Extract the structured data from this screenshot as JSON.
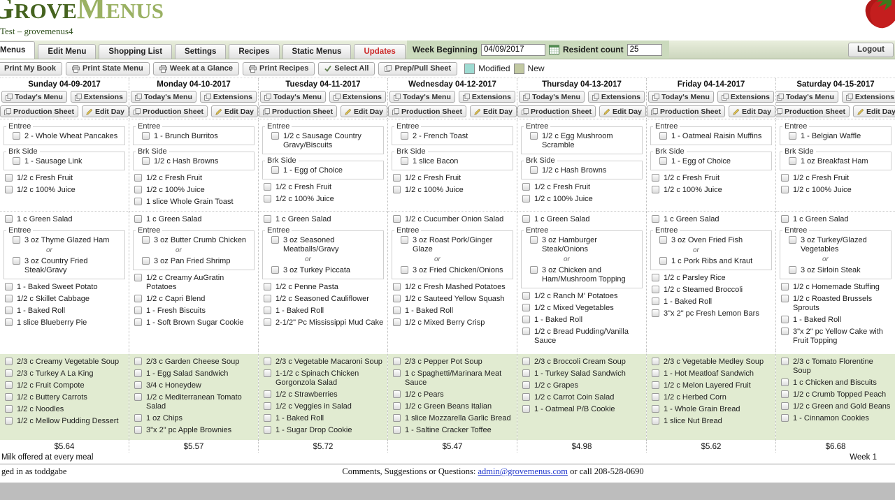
{
  "header": {
    "logo_grove": "Grove",
    "logo_menus": "Menus",
    "logo_tm": "TM",
    "subtitle": "Test – grovemenus4"
  },
  "tabs": [
    {
      "label": "Menus",
      "active": true
    },
    {
      "label": "Edit Menu"
    },
    {
      "label": "Shopping List"
    },
    {
      "label": "Settings"
    },
    {
      "label": "Recipes"
    },
    {
      "label": "Static Menus"
    },
    {
      "label": "Updates",
      "highlight": true
    }
  ],
  "week_bar": {
    "week_beginning_label": "Week Beginning",
    "week_beginning_value": "04/09/2017",
    "resident_count_label": "Resident count",
    "resident_count_value": "25",
    "logout_label": "Logout"
  },
  "toolbar": {
    "buttons": [
      {
        "label": "Print My Book",
        "icon": null,
        "name": "print-my-book-button"
      },
      {
        "label": "Print State Menu",
        "icon": "printer",
        "name": "print-state-menu-button"
      },
      {
        "label": "Week at a Glance",
        "icon": "printer",
        "name": "week-at-a-glance-button"
      },
      {
        "label": "Print Recipes",
        "icon": "printer",
        "name": "print-recipes-button"
      },
      {
        "label": "Select All",
        "icon": "check",
        "name": "select-all-button"
      },
      {
        "label": "Prep/Pull Sheet",
        "icon": "copy",
        "name": "prep-pull-sheet-button"
      }
    ],
    "legend": [
      {
        "label": "Modified",
        "color": "#9edbd2"
      },
      {
        "label": "New",
        "color": "#c2c9a2"
      }
    ]
  },
  "labels": {
    "or_separator": "or"
  },
  "day_buttons": {
    "todays_menu": "Today's Menu",
    "extensions": "Extensions",
    "production_sheet": "Production Sheet",
    "edit_day": "Edit Day"
  },
  "days": [
    {
      "title": "Sunday 04-09-2017",
      "breakfast": {
        "entree_label": "Entree",
        "entree_items": [
          "2 - Whole Wheat Pancakes"
        ],
        "side_label": "Brk Side",
        "side_items": [
          "1 - Sausage Link"
        ],
        "items": [
          "1/2 c Fresh Fruit",
          "1/2 c 100% Juice"
        ]
      },
      "lunch": {
        "pre_items": [
          "1 c Green Salad"
        ],
        "entree_label": "Entree",
        "entree_options": [
          "3 oz Thyme Glazed Ham",
          "3 oz Country Fried Steak/Gravy"
        ],
        "items": [
          "1 - Baked Sweet Potato",
          "1/2 c Skillet Cabbage",
          "1 - Baked Roll",
          "1 slice Blueberry Pie"
        ]
      },
      "dinner_items": [
        "2/3 c Creamy Vegetable Soup",
        "2/3 c Turkey A La King",
        "1/2 c Fruit Compote",
        "1/2 c Buttery Carrots",
        "1/2 c Noodles",
        "1/2 c Mellow Pudding Dessert"
      ],
      "price": "$5.64"
    },
    {
      "title": "Monday 04-10-2017",
      "breakfast": {
        "entree_label": "Entree",
        "entree_items": [
          "1 - Brunch Burritos"
        ],
        "side_label": "Brk Side",
        "side_items": [
          "1/2 c Hash Browns"
        ],
        "items": [
          "1/2 c Fresh Fruit",
          "1/2 c 100% Juice",
          "1 slice Whole Grain Toast"
        ]
      },
      "lunch": {
        "pre_items": [
          "1 c Green Salad"
        ],
        "entree_label": "Entree",
        "entree_options": [
          "3 oz Butter Crumb Chicken",
          "3 oz Pan Fried Shrimp"
        ],
        "items": [
          "1/2 c Creamy AuGratin Potatoes",
          "1/2 c Capri Blend",
          "1 - Fresh Biscuits",
          "1 - Soft Brown Sugar Cookie"
        ]
      },
      "dinner_items": [
        "2/3 c Garden Cheese Soup",
        "1 - Egg Salad Sandwich",
        "3/4 c Honeydew",
        "1/2 c Mediterranean Tomato Salad",
        "1 oz Chips",
        "3\"x 2\" pc Apple Brownies"
      ],
      "price": "$5.57"
    },
    {
      "title": "Tuesday 04-11-2017",
      "breakfast": {
        "entree_label": "Entree",
        "entree_items": [
          "1/2 c Sausage Country Gravy/Biscuits"
        ],
        "side_label": "Brk Side",
        "side_items": [
          "1 - Egg of Choice"
        ],
        "items": [
          "1/2 c Fresh Fruit",
          "1/2 c 100% Juice"
        ]
      },
      "lunch": {
        "pre_items": [
          "1 c Green Salad"
        ],
        "entree_label": "Entree",
        "entree_options": [
          "3 oz Seasoned Meatballs/Gravy",
          "3 oz Turkey Piccata"
        ],
        "items": [
          "1/2 c Penne Pasta",
          "1/2 c Seasoned Cauliflower",
          "1 - Baked Roll",
          "2-1/2\" Pc Mississippi Mud Cake"
        ]
      },
      "dinner_items": [
        "2/3 c Vegetable Macaroni Soup",
        "1-1/2 c Spinach Chicken Gorgonzola Salad",
        "1/2 c Strawberries",
        "1/2 c Veggies in Salad",
        "1 - Baked Roll",
        "1 - Sugar Drop Cookie"
      ],
      "price": "$5.72"
    },
    {
      "title": "Wednesday 04-12-2017",
      "breakfast": {
        "entree_label": "Entree",
        "entree_items": [
          "2 - French Toast"
        ],
        "side_label": "Brk Side",
        "side_items": [
          "1 slice Bacon"
        ],
        "items": [
          "1/2 c Fresh Fruit",
          "1/2 c 100% Juice"
        ]
      },
      "lunch": {
        "pre_items": [
          "1/2 c Cucumber Onion Salad"
        ],
        "entree_label": "Entree",
        "entree_options": [
          "3 oz Roast Pork/Ginger Glaze",
          "3 oz Fried Chicken/Onions"
        ],
        "items": [
          "1/2 c Fresh Mashed Potatoes",
          "1/2 c Sauteed Yellow Squash",
          "1 - Baked Roll",
          "1/2 c Mixed Berry Crisp"
        ]
      },
      "dinner_items": [
        "2/3 c Pepper Pot Soup",
        "1 c Spaghetti/Marinara Meat Sauce",
        "1/2 c Pears",
        "1/2 c Green Beans Italian",
        "1 slice Mozzarella Garlic Bread",
        "1 - Saltine Cracker Toffee"
      ],
      "price": "$5.47"
    },
    {
      "title": "Thursday 04-13-2017",
      "breakfast": {
        "entree_label": "Entree",
        "entree_items": [
          "1/2 c Egg Mushroom Scramble"
        ],
        "side_label": "Brk Side",
        "side_items": [
          "1/2 c Hash Browns"
        ],
        "items": [
          "1/2 c Fresh Fruit",
          "1/2 c 100% Juice"
        ]
      },
      "lunch": {
        "pre_items": [
          "1 c Green Salad"
        ],
        "entree_label": "Entree",
        "entree_options": [
          "3 oz Hamburger Steak/Onions",
          "3 oz Chicken and Ham/Mushroom Topping"
        ],
        "items": [
          "1/2 c Ranch M' Potatoes",
          "1/2 c Mixed Vegetables",
          "1 - Baked Roll",
          "1/2 c Bread Pudding/Vanilla Sauce"
        ]
      },
      "dinner_items": [
        "2/3 c Broccoli Cream Soup",
        "1 - Turkey Salad Sandwich",
        "1/2 c Grapes",
        "1/2 c Carrot Coin Salad",
        "1 - Oatmeal P/B Cookie"
      ],
      "price": "$4.98"
    },
    {
      "title": "Friday 04-14-2017",
      "breakfast": {
        "entree_label": "Entree",
        "entree_items": [
          "1 - Oatmeal Raisin Muffins"
        ],
        "side_label": "Brk Side",
        "side_items": [
          "1 - Egg of Choice"
        ],
        "items": [
          "1/2 c Fresh Fruit",
          "1/2 c 100% Juice"
        ]
      },
      "lunch": {
        "pre_items": [
          "1 c Green Salad"
        ],
        "entree_label": "Entree",
        "entree_options": [
          "3 oz Oven Fried Fish",
          "1 c Pork Ribs and Kraut"
        ],
        "items": [
          "1/2 c Parsley Rice",
          "1/2 c Steamed Broccoli",
          "1 - Baked Roll",
          "3\"x 2\" pc Fresh Lemon Bars"
        ]
      },
      "dinner_items": [
        "2/3 c Vegetable Medley Soup",
        "1 - Hot Meatloaf Sandwich",
        "1/2 c Melon Layered Fruit",
        "1/2 c Herbed Corn",
        "1 - Whole Grain Bread",
        "1 slice Nut Bread"
      ],
      "price": "$5.62"
    },
    {
      "title": "Saturday 04-15-2017",
      "breakfast": {
        "entree_label": "Entree",
        "entree_items": [
          "1 - Belgian Waffle"
        ],
        "side_label": "Brk Side",
        "side_items": [
          "1 oz Breakfast Ham"
        ],
        "items": [
          "1/2 c Fresh Fruit",
          "1/2 c 100% Juice"
        ]
      },
      "lunch": {
        "pre_items": [
          "1 c Green Salad"
        ],
        "entree_label": "Entree",
        "entree_options": [
          "3 oz Turkey/Glazed Vegetables",
          "3 oz Sirloin Steak"
        ],
        "items": [
          "1/2 c Homemade Stuffing",
          "1/2 c Roasted Brussels Sprouts",
          "1 - Baked Roll",
          "3\"x 2\" pc Yellow Cake with Fruit Topping"
        ]
      },
      "dinner_items": [
        "2/3 c Tomato Florentine Soup",
        "1 c Chicken and Biscuits",
        "1/2 c Crumb Topped Peach",
        "1/2 c Green and Gold Beans",
        "1 - Cinnamon Cookies"
      ],
      "price": "$6.68"
    }
  ],
  "footer": {
    "milk_note": "Milk offered at every meal",
    "week_label": "Week 1",
    "logged_in": "ged in as toddgabe",
    "contact_prefix": "Comments, Suggestions or Questions:",
    "contact_email": "admin@grovemenus.com",
    "contact_suffix": "or call 208-528-0690"
  }
}
